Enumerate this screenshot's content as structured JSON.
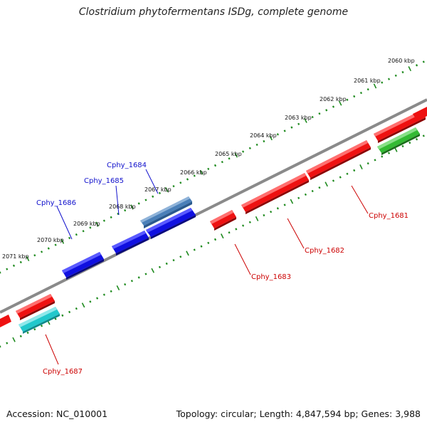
{
  "title": "Clostridium phytofermentans ISDg, complete genome",
  "footer": {
    "accession": "Accession: NC_010001",
    "summary": "Topology: circular; Length: 4,847,594 bp; Genes: 3,988"
  },
  "colors": {
    "backbone": "#888888",
    "ruler": "#1e8a1e",
    "tick_label": "#111111",
    "top_label": "#1010cc",
    "bottom_label": "#cc0000",
    "red": "#ee1111",
    "blue": "#1010e0",
    "steelblue": "#4a7fb8",
    "cyan": "#22c8cc",
    "green": "#33bb33"
  },
  "ticks": [
    "2060 kbp",
    "2061 kbp",
    "2062 kbp",
    "2063 kbp",
    "2064 kbp",
    "2065 kbp",
    "2066 kbp",
    "2067 kbp",
    "2068 kbp",
    "2069 kbp",
    "2070 kbp",
    "2071 kbp"
  ],
  "gene_labels": {
    "top": [
      "Cphy_1684",
      "Cphy_1685",
      "Cphy_1686"
    ],
    "bottom": [
      "Cphy_1681",
      "Cphy_1682",
      "Cphy_1683",
      "Cphy_1687"
    ]
  }
}
